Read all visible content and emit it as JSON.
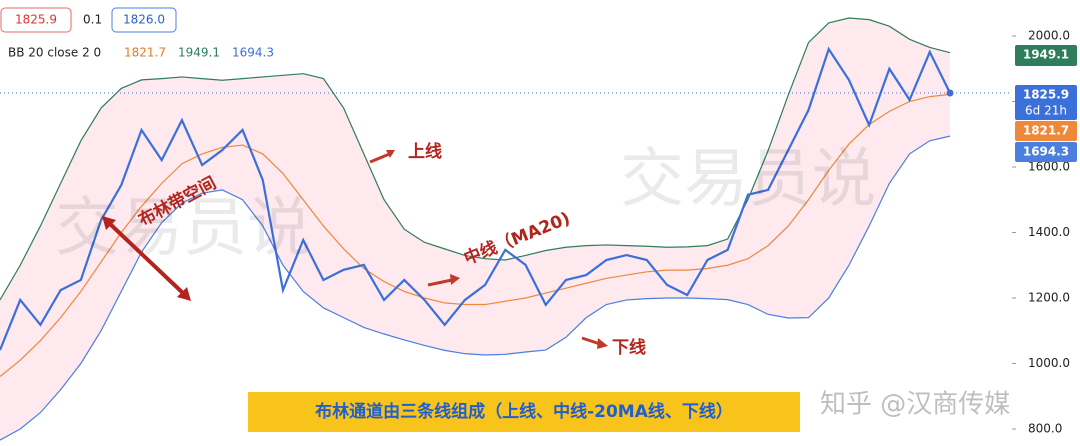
{
  "chart_data": {
    "type": "line",
    "header": {
      "price": "1825.9",
      "spread": 0.1,
      "ask": "1826.0",
      "legend_title": "BB 20 close 2 0",
      "countdown": "6d 21h"
    },
    "series": [
      {
        "color": "#3b6fd9",
        "values": [
          1041,
          1194,
          1118,
          1224,
          1255,
          1438,
          1545,
          1713,
          1621,
          1743,
          1606,
          1652,
          1713,
          1560,
          1224,
          1377,
          1255,
          1286,
          1301,
          1194,
          1255,
          1194,
          1118,
          1194,
          1240,
          1347,
          1301,
          1179,
          1255,
          1270,
          1316,
          1331,
          1316,
          1240,
          1209,
          1316,
          1347,
          1515,
          1530,
          1652,
          1774,
          1960,
          1866,
          1728,
          1900,
          1805,
          1951,
          1825.9
        ]
      },
      {
        "color": "#f0883a",
        "values": [
          960,
          1010,
          1070,
          1140,
          1220,
          1310,
          1400,
          1480,
          1550,
          1610,
          1640,
          1660,
          1667,
          1640,
          1580,
          1500,
          1420,
          1350,
          1290,
          1250,
          1220,
          1200,
          1185,
          1180,
          1180,
          1190,
          1200,
          1215,
          1230,
          1245,
          1260,
          1270,
          1280,
          1285,
          1285,
          1290,
          1300,
          1320,
          1360,
          1420,
          1500,
          1590,
          1670,
          1730,
          1770,
          1800,
          1815,
          1821.7
        ]
      },
      {
        "color": "#2e7d5b",
        "values": [
          1194,
          1300,
          1420,
          1550,
          1680,
          1780,
          1840,
          1866,
          1870,
          1875,
          1870,
          1865,
          1870,
          1875,
          1880,
          1885,
          1870,
          1780,
          1640,
          1500,
          1410,
          1370,
          1350,
          1330,
          1320,
          1316,
          1330,
          1345,
          1355,
          1360,
          1362,
          1360,
          1358,
          1355,
          1356,
          1360,
          1380,
          1500,
          1650,
          1820,
          1980,
          2040,
          2055,
          2050,
          2030,
          1990,
          1965,
          1949.1
        ]
      },
      {
        "color": "#4a7fe0",
        "values": [
          766,
          800,
          850,
          920,
          1000,
          1100,
          1220,
          1340,
          1430,
          1490,
          1520,
          1530,
          1500,
          1420,
          1300,
          1220,
          1170,
          1140,
          1110,
          1090,
          1072,
          1055,
          1040,
          1030,
          1026,
          1028,
          1035,
          1041,
          1080,
          1140,
          1180,
          1194,
          1198,
          1200,
          1200,
          1198,
          1195,
          1180,
          1150,
          1139,
          1140,
          1200,
          1300,
          1420,
          1550,
          1640,
          1680,
          1694.3
        ]
      }
    ],
    "band_fill": "#fde9ee",
    "ylim": [
      748,
      2110
    ],
    "yticks": [
      {
        "value": 800,
        "label": "800.0"
      },
      {
        "value": 1000,
        "label": "1000.0"
      },
      {
        "value": 1200,
        "label": "1200.0"
      },
      {
        "value": 1400,
        "label": "1400.0"
      },
      {
        "value": 1600,
        "label": "1600.0"
      },
      {
        "value": 1800,
        "label": "1800.0"
      },
      {
        "value": 2000,
        "label": "2000.0"
      }
    ],
    "annotations": {
      "upper": "上线",
      "middle": "中线（MA20)",
      "lower": "下线",
      "band": "布林带空间",
      "banner": "布林通道由三条线组成（上线、中线-20MA线、下线）"
    },
    "watermarks": [
      "交易员说",
      "交易员说",
      "知乎 @汉商传媒"
    ]
  }
}
